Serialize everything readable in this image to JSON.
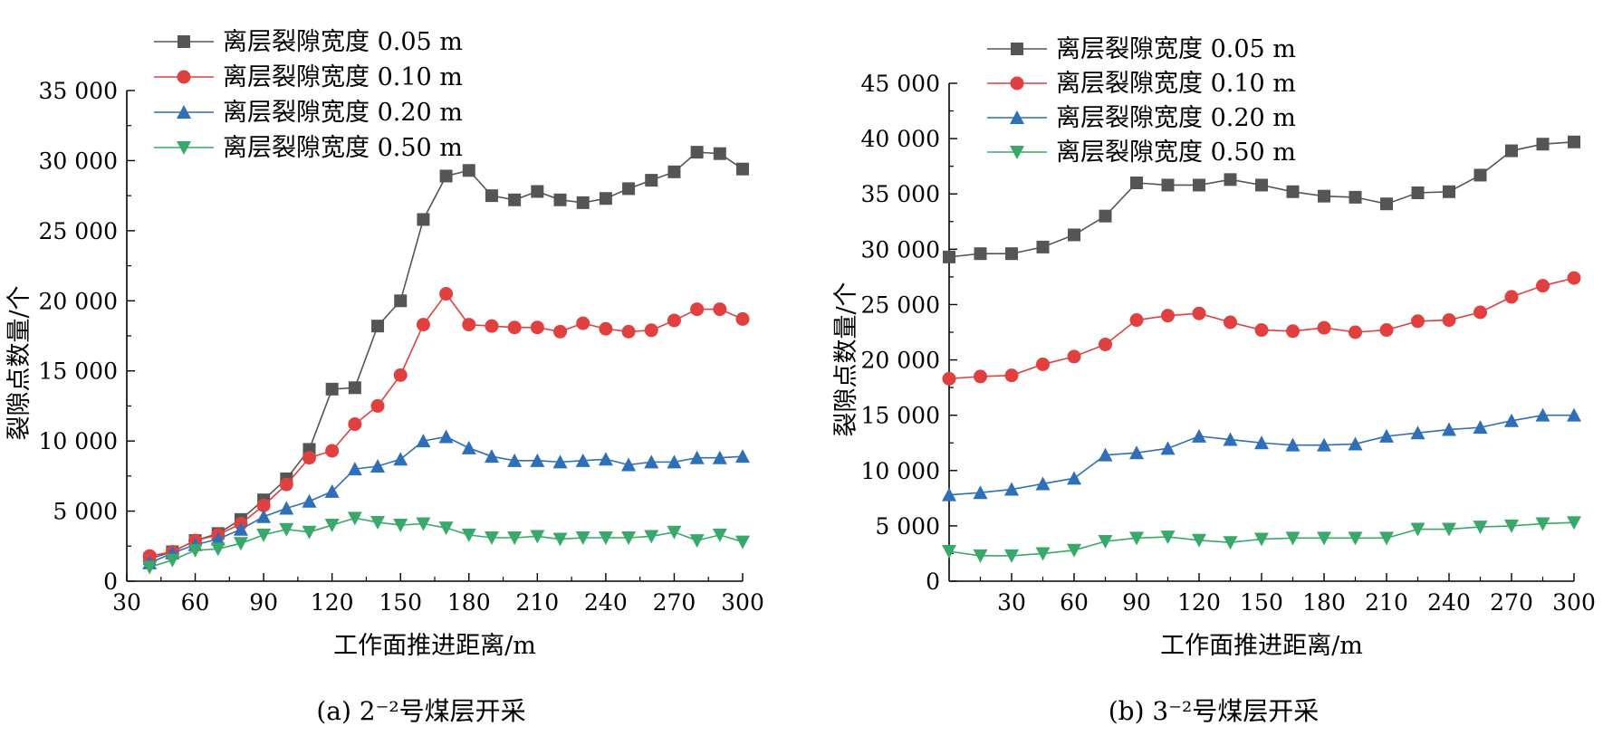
{
  "chart_data": [
    {
      "type": "line",
      "caption": "(a) 2⁻²号煤层开采",
      "xlabel": "工作面推进距离/m",
      "ylabel": "裂隙点数量/个",
      "xlim": [
        30,
        300
      ],
      "ylim": [
        0,
        35000
      ],
      "xticks": [
        "30",
        "60",
        "90",
        "120",
        "150",
        "180",
        "210",
        "240",
        "270",
        "300"
      ],
      "yticks": [
        "0",
        "5 000",
        "10 000",
        "15 000",
        "20 000",
        "25 000",
        "30 000",
        "35 000"
      ],
      "legend_position": "top-left",
      "x": [
        40,
        50,
        60,
        70,
        80,
        90,
        100,
        110,
        120,
        130,
        140,
        150,
        160,
        170,
        180,
        190,
        200,
        210,
        220,
        230,
        240,
        250,
        260,
        270,
        280,
        290,
        300
      ],
      "series": [
        {
          "name": "离层裂隙宽度 0.05 m",
          "color": "#555555",
          "marker": "square",
          "values": [
            1600,
            2100,
            2900,
            3400,
            4400,
            5800,
            7300,
            9400,
            13700,
            13800,
            18200,
            20000,
            25800,
            28900,
            29300,
            27500,
            27200,
            27800,
            27200,
            27000,
            27300,
            28000,
            28600,
            29200,
            30600,
            30500,
            29400
          ]
        },
        {
          "name": "离层裂隙宽度 0.10 m",
          "color": "#e04040",
          "marker": "circle",
          "values": [
            1800,
            2100,
            2900,
            3300,
            4100,
            5400,
            6900,
            8800,
            9300,
            11200,
            12500,
            14700,
            18300,
            20500,
            18300,
            18200,
            18100,
            18100,
            17800,
            18400,
            18000,
            17800,
            17900,
            18600,
            19400,
            19400,
            18700
          ]
        },
        {
          "name": "离层裂隙宽度 0.20 m",
          "color": "#2e6fb8",
          "marker": "triangle-up",
          "values": [
            1300,
            2000,
            2600,
            3000,
            3700,
            4600,
            5200,
            5700,
            6400,
            8000,
            8200,
            8700,
            10000,
            10300,
            9500,
            8900,
            8600,
            8600,
            8500,
            8600,
            8700,
            8300,
            8500,
            8500,
            8800,
            8800,
            8900
          ]
        },
        {
          "name": "离层裂隙宽度 0.50 m",
          "color": "#3aa86a",
          "marker": "triangle-down",
          "values": [
            1000,
            1500,
            2200,
            2300,
            2700,
            3300,
            3700,
            3500,
            4000,
            4500,
            4200,
            4000,
            4100,
            3800,
            3300,
            3100,
            3100,
            3200,
            3000,
            3100,
            3100,
            3100,
            3200,
            3500,
            2900,
            3300,
            2800
          ]
        }
      ]
    },
    {
      "type": "line",
      "caption": "(b) 3⁻²号煤层开采",
      "xlabel": "工作面推进距离/m",
      "ylabel": "裂隙点数量/个",
      "xlim": [
        0,
        300
      ],
      "ylim": [
        0,
        45000
      ],
      "xticks": [
        "30",
        "60",
        "90",
        "120",
        "150",
        "180",
        "210",
        "240",
        "270",
        "300"
      ],
      "yticks": [
        "0",
        "5 000",
        "10 000",
        "15 000",
        "20 000",
        "25 000",
        "30 000",
        "35 000",
        "40 000",
        "45 000"
      ],
      "legend_position": "top-left",
      "x": [
        0,
        15,
        30,
        45,
        60,
        75,
        90,
        105,
        120,
        135,
        150,
        165,
        180,
        195,
        210,
        225,
        240,
        255,
        270,
        285,
        300
      ],
      "series": [
        {
          "name": "离层裂隙宽度 0.05 m",
          "color": "#555555",
          "marker": "square",
          "values": [
            29300,
            29600,
            29600,
            30200,
            31300,
            33000,
            36000,
            35800,
            35800,
            36300,
            35800,
            35200,
            34800,
            34700,
            34100,
            35100,
            35200,
            36700,
            38900,
            39500,
            39700
          ]
        },
        {
          "name": "离层裂隙宽度 0.10 m",
          "color": "#e04040",
          "marker": "circle",
          "values": [
            18300,
            18500,
            18600,
            19600,
            20300,
            21400,
            23600,
            24000,
            24200,
            23400,
            22700,
            22600,
            22900,
            22500,
            22700,
            23500,
            23600,
            24300,
            25700,
            26700,
            27400
          ]
        },
        {
          "name": "离层裂隙宽度 0.20 m",
          "color": "#2e6fb8",
          "marker": "triangle-up",
          "values": [
            7800,
            8000,
            8300,
            8800,
            9300,
            11400,
            11600,
            12000,
            13100,
            12800,
            12500,
            12300,
            12300,
            12400,
            13100,
            13400,
            13700,
            13900,
            14500,
            15000,
            15000
          ]
        },
        {
          "name": "离层裂隙宽度 0.50 m",
          "color": "#3aa86a",
          "marker": "triangle-down",
          "values": [
            2700,
            2300,
            2300,
            2500,
            2800,
            3600,
            3900,
            4000,
            3700,
            3500,
            3800,
            3900,
            3900,
            3900,
            3900,
            4700,
            4700,
            4900,
            5000,
            5200,
            5300
          ]
        }
      ]
    }
  ]
}
